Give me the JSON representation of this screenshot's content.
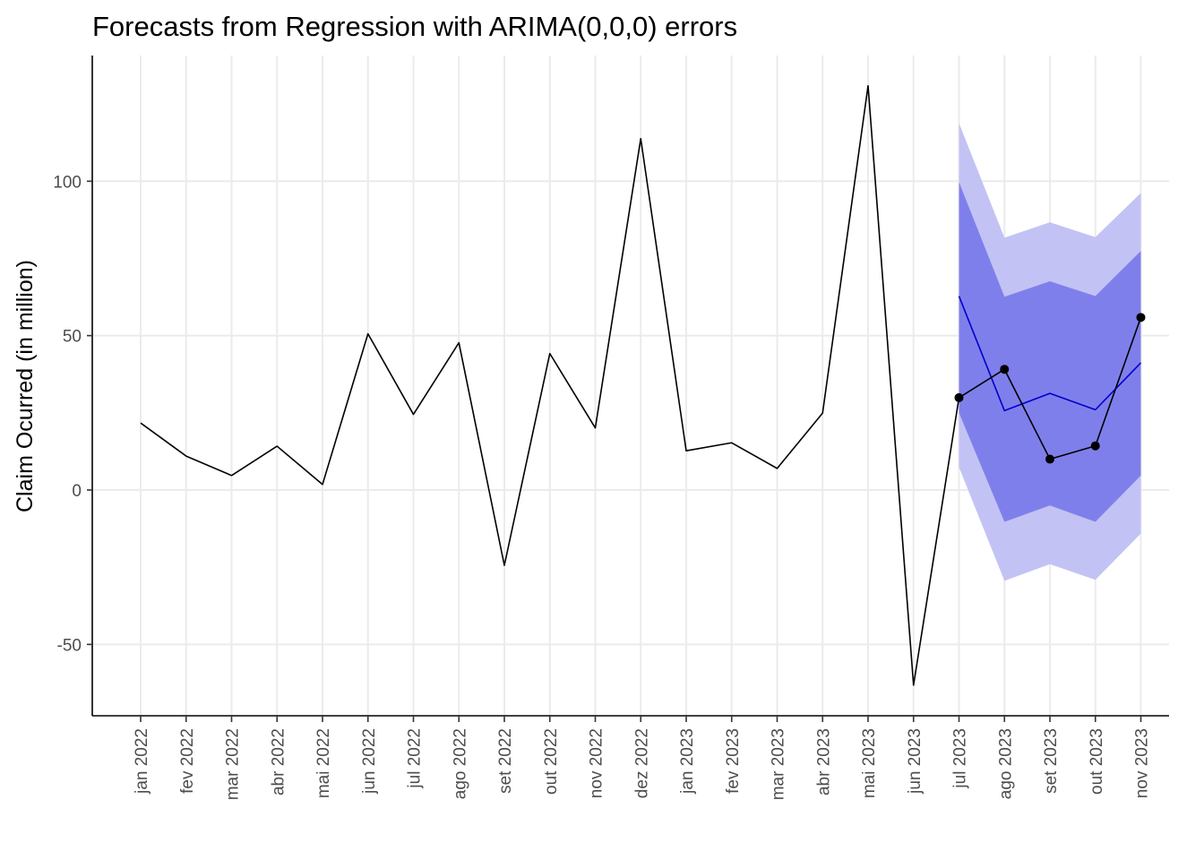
{
  "chart_data": {
    "type": "line",
    "title": "Forecasts from Regression with ARIMA(0,0,0) errors",
    "xlabel": "",
    "ylabel": "Claim Ocurred (in million)",
    "ylim": [
      -72,
      130
    ],
    "y_ticks": [
      -50,
      0,
      50,
      100
    ],
    "y_tick_labels": [
      "-50",
      "0",
      "50",
      "100"
    ],
    "categories": [
      "jan 2022",
      "fev 2022",
      "mar 2022",
      "abr 2022",
      "mai 2022",
      "jun 2022",
      "jul 2022",
      "ago 2022",
      "set 2022",
      "out 2022",
      "nov 2022",
      "dez 2022",
      "jan 2023",
      "fev 2023",
      "mar 2023",
      "abr 2023",
      "mai 2023",
      "jun 2023",
      "jul 2023",
      "ago 2023",
      "set 2023",
      "out 2023",
      "nov 2023"
    ],
    "grid": true,
    "legend": "none",
    "colors": {
      "history": "#000000",
      "forecast_line": "#0000cc",
      "band_95": "#c2c2f4",
      "band_80": "#7f7fec",
      "grid": "#ebebeb",
      "axis": "#000000"
    },
    "series": [
      {
        "role": "history",
        "x": [
          "jan 2022",
          "fev 2022",
          "mar 2022",
          "abr 2022",
          "mai 2022",
          "jun 2022",
          "jul 2022",
          "ago 2022",
          "set 2022",
          "out 2022",
          "nov 2022",
          "dez 2022",
          "jan 2023",
          "fev 2023",
          "mar 2023",
          "abr 2023",
          "mai 2023",
          "jun 2023",
          "jul 2023"
        ],
        "values": [
          21.7,
          11.0,
          4.7,
          14.2,
          1.8,
          50.6,
          24.5,
          47.7,
          -24.4,
          44.2,
          20.1,
          113.8,
          12.7,
          15.3,
          7.0,
          24.9,
          130.9,
          -63.2,
          29.9
        ]
      },
      {
        "role": "forecast_mean",
        "x": [
          "jul 2023",
          "ago 2023",
          "set 2023",
          "out 2023",
          "nov 2023"
        ],
        "values": [
          62.8,
          25.7,
          31.3,
          26.0,
          41.2
        ]
      },
      {
        "role": "forecast_80",
        "x": [
          "jul 2023",
          "ago 2023",
          "set 2023",
          "out 2023",
          "nov 2023"
        ],
        "lower": [
          25.0,
          -10.3,
          -5.0,
          -10.3,
          4.7
        ],
        "upper": [
          99.7,
          62.6,
          67.6,
          62.8,
          77.4
        ]
      },
      {
        "role": "forecast_95",
        "x": [
          "jul 2023",
          "ago 2023",
          "set 2023",
          "out 2023",
          "nov 2023"
        ],
        "lower": [
          7.4,
          -29.4,
          -24.0,
          -29.1,
          -14.1
        ],
        "upper": [
          118.8,
          81.7,
          86.7,
          81.9,
          96.2
        ]
      },
      {
        "role": "actuals",
        "x": [
          "jul 2023",
          "ago 2023",
          "set 2023",
          "out 2023",
          "nov 2023"
        ],
        "values": [
          29.9,
          39.1,
          10.0,
          14.3,
          55.9
        ]
      }
    ]
  }
}
